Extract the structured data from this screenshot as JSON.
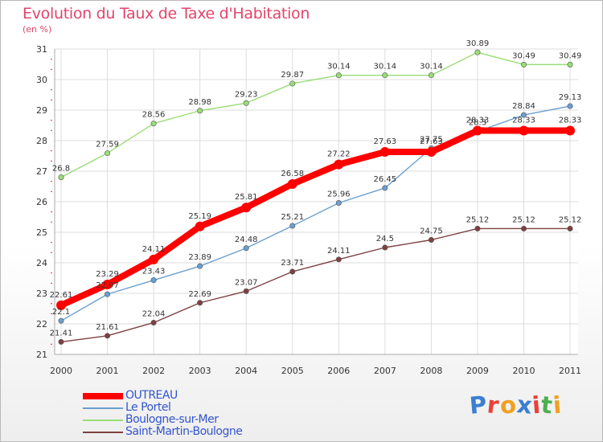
{
  "header": {
    "title": "Evolution du Taux de Taxe d'Habitation",
    "subtitle": "(en %)"
  },
  "logo_text": "Proxiti",
  "chart_data": {
    "type": "line",
    "title": "Evolution du Taux de Taxe d'Habitation",
    "ylabel": "(en %)",
    "xlabel": "",
    "x": [
      "2000",
      "2001",
      "2002",
      "2003",
      "2004",
      "2005",
      "2006",
      "2007",
      "2008",
      "2009",
      "2010",
      "2011"
    ],
    "yticks": [
      21,
      22,
      23,
      24,
      25,
      26,
      27,
      28,
      29,
      30,
      31
    ],
    "ylim": [
      21,
      31
    ],
    "grid": true,
    "legend_position": "bottom-left",
    "series": [
      {
        "name": "OUTREAU",
        "color": "#ff0000",
        "emphasis": true,
        "values": [
          22.61,
          23.29,
          24.11,
          25.19,
          25.81,
          26.58,
          27.22,
          27.63,
          27.63,
          28.33,
          28.33,
          28.33
        ],
        "labels": [
          "22.61",
          "23.29",
          "24.11",
          "25.19",
          "25.81",
          "26.58",
          "27.22",
          "27.63",
          "27.63",
          "28.33",
          "28.33",
          "28.33"
        ]
      },
      {
        "name": "Le Portel",
        "color": "#6a9fcf",
        "emphasis": false,
        "values": [
          22.1,
          22.97,
          23.43,
          23.89,
          24.48,
          25.21,
          25.96,
          26.45,
          27.75,
          28.3,
          28.84,
          29.13
        ],
        "labels": [
          "22.1",
          "22.97",
          "23.43",
          "23.89",
          "24.48",
          "25.21",
          "25.96",
          "26.45",
          "27.75",
          "28.3",
          "28.84",
          "29.13"
        ]
      },
      {
        "name": "Boulogne-sur-Mer",
        "color": "#99dd77",
        "emphasis": false,
        "values": [
          26.8,
          27.59,
          28.56,
          28.98,
          29.23,
          29.87,
          30.14,
          30.14,
          30.14,
          30.89,
          30.49,
          30.49
        ],
        "labels": [
          "26.8",
          "27.59",
          "28.56",
          "28.98",
          "29.23",
          "29.87",
          "30.14",
          "30.14",
          "30.14",
          "30.89",
          "30.49",
          "30.49"
        ]
      },
      {
        "name": "Saint-Martin-Boulogne",
        "color": "#7d4141",
        "emphasis": false,
        "values": [
          21.41,
          21.61,
          22.04,
          22.69,
          23.07,
          23.71,
          24.11,
          24.5,
          24.75,
          25.12,
          25.12,
          25.12
        ],
        "labels": [
          "21.41",
          "21.61",
          "22.04",
          "22.69",
          "23.07",
          "23.71",
          "24.11",
          "24.5",
          "24.75",
          "25.12",
          "25.12",
          "25.12"
        ]
      }
    ]
  }
}
